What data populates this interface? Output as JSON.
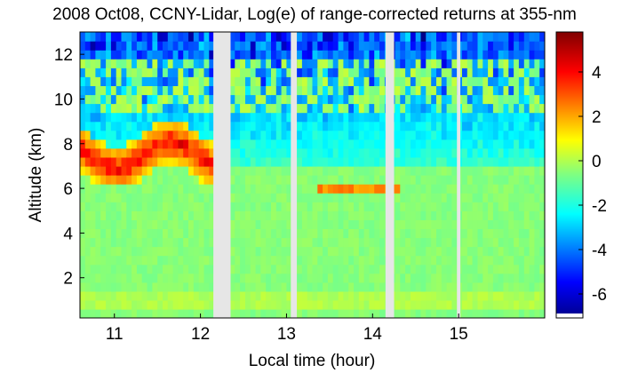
{
  "chart_data": {
    "type": "heatmap",
    "title": "2008 Oct08, CCNY-Lidar, Log(e) of range-corrected returns at 355-nm",
    "xlabel": "Local time (hour)",
    "ylabel": "Altitude (km)",
    "xlim": [
      10.6,
      16.0
    ],
    "ylim": [
      0.2,
      13.0
    ],
    "x_ticks": [
      "11",
      "12",
      "13",
      "14",
      "15"
    ],
    "y_ticks": [
      "2",
      "4",
      "6",
      "8",
      "10",
      "12"
    ],
    "colorbar": {
      "range": [
        -7,
        5.8
      ],
      "ticks": [
        "4",
        "2",
        "0",
        "-2",
        "-4",
        "-6"
      ],
      "colormap": "jet"
    },
    "data_gaps_hours": [
      [
        12.15,
        12.35
      ],
      [
        13.05,
        13.12
      ],
      [
        14.15,
        14.25
      ],
      [
        14.98,
        15.02
      ]
    ],
    "features": {
      "cloud_layer": {
        "alt_km": [
          6.0,
          8.8
        ],
        "time_h": [
          10.6,
          12.15
        ],
        "value_range": [
          1,
          5
        ]
      },
      "thin_layer": {
        "alt_km": [
          5.6,
          6.0
        ],
        "time_h": [
          13.35,
          14.3
        ],
        "value": 2
      },
      "boundary_layer": {
        "alt_km": [
          0.3,
          1.3
        ],
        "time_h": [
          10.6,
          16.0
        ],
        "value": 0
      },
      "background_value": -1.5
    }
  }
}
